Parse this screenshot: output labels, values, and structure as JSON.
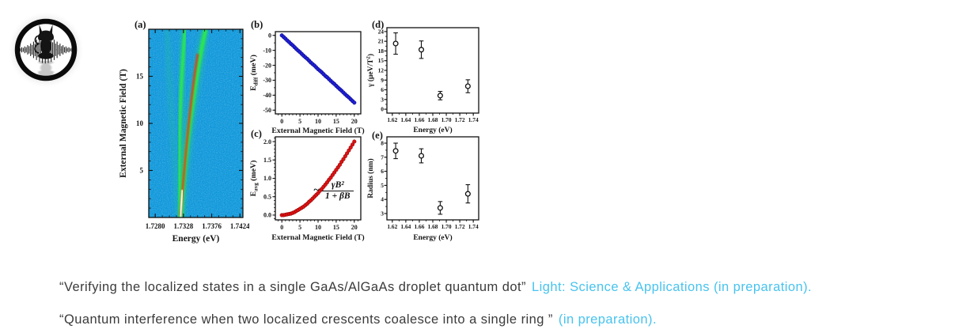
{
  "page": {
    "background": "#ffffff"
  },
  "logo": {
    "name": "cat-on-sound-wave-logo",
    "ring_color": "#0b0b0b",
    "glow_color": "#c8c8c8"
  },
  "citations": [
    {
      "quote": "“Verifying the localized states in a single GaAs/AlGaAs droplet quantum dot”",
      "venue": "Light: Science & Applications (in preparation).",
      "text_color": "#3b3b3b",
      "venue_color": "#47c3ee"
    },
    {
      "quote": "“Quantum interference when two localized crescents coalesce into a single ring ”",
      "venue": "(in preparation).",
      "text_color": "#3b3b3b",
      "venue_color": "#47c3ee"
    }
  ],
  "chart_data": [
    {
      "id": "a",
      "panel_label": "(a)",
      "type": "heatmap",
      "xlabel": "Energy (eV)",
      "ylabel_parts": [
        {
          "t": "External Magnetic Field (T)"
        }
      ],
      "xlim": [
        1.7269,
        1.7429
      ],
      "ylim": [
        0,
        20
      ],
      "xticks": [
        1.728,
        1.7328,
        1.7376,
        1.7424
      ],
      "xtick_labels": [
        "1.7280",
        "1.7328",
        "1.7376",
        "1.7424"
      ],
      "yticks": [
        5,
        10,
        15
      ],
      "ytick_labels": [
        "5",
        "10",
        "15"
      ],
      "xminor": 0.0012,
      "yminor": 1,
      "colors": {
        "background": "#0d97dc",
        "branch": "#2ce84d",
        "hot": "#f03307",
        "core": "#ffffff"
      },
      "description": "Photoluminescence intensity map vs energy and magnetic field: two bright emission branches converge near 1.7330 eV at 0 T; the right branch (green with red/white hot core at low field) fans toward higher energy as field increases to 20 T."
    },
    {
      "id": "b",
      "panel_label": "(b)",
      "type": "scatter-line",
      "xlabel": "External Magnetic Field (T)",
      "ylabel_parts": [
        {
          "t": "E"
        },
        {
          "t": "diff",
          "sub": true
        },
        {
          "t": " (meV)"
        }
      ],
      "xlim": [
        -1.8,
        21.8
      ],
      "ylim": [
        -52.5,
        2.5
      ],
      "xticks": [
        0,
        5,
        10,
        15,
        20
      ],
      "xtick_labels": [
        "0",
        "5",
        "10",
        "15",
        "20"
      ],
      "yticks": [
        0,
        -10,
        -20,
        -30,
        -40,
        -50
      ],
      "ytick_labels": [
        "0",
        "-10",
        "-20",
        "-30",
        "-40",
        "-50"
      ],
      "xminor": 1,
      "yminor": 5,
      "marker_color": "#2020d8",
      "marker_edge": "#000070",
      "line_color": "#101010",
      "x": [
        0,
        0.5,
        1,
        1.5,
        2,
        2.5,
        3,
        3.5,
        4,
        4.5,
        5,
        5.5,
        6,
        6.5,
        7,
        7.5,
        8,
        8.5,
        9,
        9.5,
        10,
        10.5,
        11,
        11.5,
        12,
        12.5,
        13,
        13.5,
        14,
        14.5,
        15,
        15.5,
        16,
        16.5,
        17,
        17.5,
        18,
        18.5,
        19,
        19.5,
        20
      ],
      "y": [
        0.0,
        -1.1,
        -2.2,
        -3.4,
        -4.5,
        -5.7,
        -6.7,
        -7.9,
        -9.1,
        -10.2,
        -11.2,
        -12.4,
        -13.6,
        -14.7,
        -15.7,
        -16.9,
        -18.1,
        -19.2,
        -20.2,
        -21.4,
        -22.6,
        -23.6,
        -24.7,
        -25.9,
        -27.1,
        -28.0,
        -29.2,
        -30.4,
        -31.5,
        -32.5,
        -33.7,
        -34.9,
        -36.0,
        -37.0,
        -38.2,
        -39.4,
        -40.5,
        -41.5,
        -42.7,
        -43.9,
        -45.0
      ]
    },
    {
      "id": "c",
      "panel_label": "(c)",
      "type": "scatter-line",
      "xlabel": "External Magnetic Field (T)",
      "ylabel_parts": [
        {
          "t": "E"
        },
        {
          "t": "avg",
          "sub": true
        },
        {
          "t": " (meV)"
        }
      ],
      "xlim": [
        -1.8,
        21.8
      ],
      "ylim": [
        -0.13,
        2.13
      ],
      "xticks": [
        0,
        5,
        10,
        15,
        20
      ],
      "xtick_labels": [
        "0",
        "5",
        "10",
        "15",
        "20"
      ],
      "yticks": [
        0,
        0.5,
        1,
        1.5,
        2
      ],
      "ytick_labels": [
        "0.0",
        "0.5",
        "1.0",
        "1.5",
        "2.0"
      ],
      "xminor": 1,
      "yminor": 0.1,
      "marker_color": "#e01212",
      "marker_edge": "#7a0000",
      "line_color": "#101010",
      "formula": {
        "tilde": "~",
        "numerator": "γB²",
        "denominator": "1 + βB"
      },
      "x": [
        0,
        0.5,
        1,
        1.5,
        2,
        2.5,
        3,
        3.5,
        4,
        4.5,
        5,
        5.5,
        6,
        6.5,
        7,
        7.5,
        8,
        8.5,
        9,
        9.5,
        10,
        10.5,
        11,
        11.5,
        12,
        12.5,
        13,
        13.5,
        14,
        14.5,
        15,
        15.5,
        16,
        16.5,
        17,
        17.5,
        18,
        18.5,
        19,
        19.5,
        20
      ],
      "y": [
        0.0,
        0.0,
        0.01,
        0.02,
        0.03,
        0.04,
        0.06,
        0.08,
        0.11,
        0.14,
        0.17,
        0.2,
        0.23,
        0.27,
        0.31,
        0.36,
        0.4,
        0.45,
        0.5,
        0.55,
        0.6,
        0.66,
        0.71,
        0.77,
        0.83,
        0.89,
        0.96,
        1.02,
        1.09,
        1.16,
        1.23,
        1.3,
        1.37,
        1.45,
        1.52,
        1.6,
        1.68,
        1.76,
        1.84,
        1.92,
        2.0
      ]
    },
    {
      "id": "d",
      "panel_label": "(d)",
      "type": "errorbar",
      "xlabel": "Energy (eV)",
      "ylabel_parts": [
        {
          "t": "γ (μeV/T"
        },
        {
          "t": "2",
          "sup": true
        },
        {
          "t": ")"
        }
      ],
      "xlim": [
        1.612,
        1.748
      ],
      "ylim": [
        -1.2,
        25.2
      ],
      "xticks": [
        1.62,
        1.64,
        1.66,
        1.68,
        1.7,
        1.72,
        1.74
      ],
      "xtick_labels": [
        "1.62",
        "1.64",
        "1.66",
        "1.68",
        "1.70",
        "1.72",
        "1.74"
      ],
      "yticks": [
        0,
        3,
        6,
        9,
        12,
        15,
        18,
        21,
        24
      ],
      "ytick_labels": [
        "0",
        "3",
        "6",
        "9",
        "12",
        "15",
        "18",
        "21",
        "24"
      ],
      "xminor": 0.01,
      "yminor": 1.5,
      "points": [
        {
          "x": 1.625,
          "y": 20.3,
          "e": 3.3
        },
        {
          "x": 1.663,
          "y": 18.4,
          "e": 2.7
        },
        {
          "x": 1.691,
          "y": 4.2,
          "e": 1.3
        },
        {
          "x": 1.732,
          "y": 7.1,
          "e": 2.0
        }
      ]
    },
    {
      "id": "e",
      "panel_label": "(e)",
      "type": "errorbar",
      "xlabel": "Energy (eV)",
      "ylabel_parts": [
        {
          "t": "Radius (nm)"
        }
      ],
      "xlim": [
        1.612,
        1.748
      ],
      "ylim": [
        2.55,
        8.45
      ],
      "xticks": [
        1.62,
        1.64,
        1.66,
        1.68,
        1.7,
        1.72,
        1.74
      ],
      "xtick_labels": [
        "1.62",
        "1.64",
        "1.66",
        "1.68",
        "1.70",
        "1.72",
        "1.74"
      ],
      "yticks": [
        3,
        4,
        5,
        6,
        7,
        8
      ],
      "ytick_labels": [
        "3",
        "4",
        "5",
        "6",
        "7",
        "8"
      ],
      "xminor": 0.01,
      "yminor": 0.5,
      "points": [
        {
          "x": 1.625,
          "y": 7.45,
          "e": 0.55
        },
        {
          "x": 1.663,
          "y": 7.1,
          "e": 0.5
        },
        {
          "x": 1.691,
          "y": 3.4,
          "e": 0.45
        },
        {
          "x": 1.732,
          "y": 4.4,
          "e": 0.65
        }
      ]
    }
  ]
}
